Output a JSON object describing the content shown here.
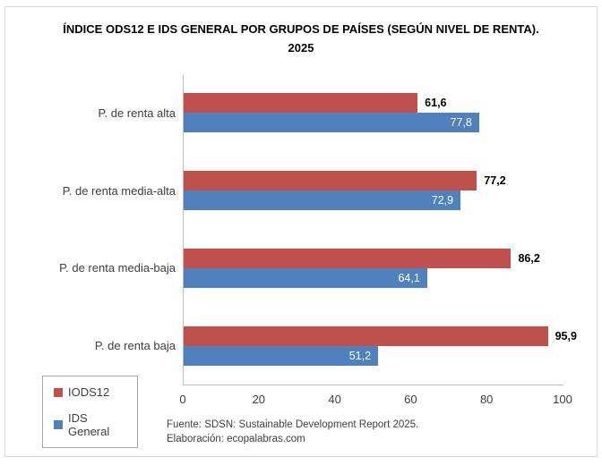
{
  "title_lines": [
    "ÍNDICE ODS12 E IDS GENERAL POR GRUPOS DE PAÍSES (SEGÚN NIVEL DE RENTA).",
    "2025"
  ],
  "chart_data": {
    "type": "bar",
    "orientation": "horizontal",
    "title": "ÍNDICE ODS12 E IDS GENERAL POR GRUPOS DE PAÍSES (SEGÚN NIVEL DE RENTA). 2025",
    "categories": [
      "P. de renta alta",
      "P. de renta media-alta",
      "P. de renta media-baja",
      "P. de renta baja"
    ],
    "series": [
      {
        "name": "IODS12",
        "color": "#C0504D",
        "values": [
          61.6,
          77.2,
          86.2,
          95.9
        ],
        "labels": [
          "61,6",
          "77,2",
          "86,2",
          "95,9"
        ],
        "label_position": "outside",
        "label_color": "#000000"
      },
      {
        "name": "IDS General",
        "color": "#4F81BD",
        "values": [
          77.8,
          72.9,
          64.1,
          51.2
        ],
        "labels": [
          "77,8",
          "72,9",
          "64,1",
          "51,2"
        ],
        "label_position": "inside",
        "label_color": "#FFFFFF"
      }
    ],
    "x_axis": {
      "min": 0,
      "max": 100,
      "ticks": [
        0,
        20,
        40,
        60,
        80,
        100
      ],
      "tick_labels": [
        "0",
        "20",
        "40",
        "60",
        "80",
        "100"
      ]
    },
    "legend": {
      "position": "bottom-left",
      "entries": [
        "IODS12",
        "IDS General"
      ]
    },
    "grid": false
  },
  "footer": {
    "source": "Fuente: SDSN: Sustainable Development Report 2025.",
    "elaboration": "Elaboración: ecopalabras.com"
  },
  "colors": {
    "iods12": "#C0504D",
    "ids_general": "#4F81BD",
    "axis_line": "#BFBFBF",
    "chart_border": "#D9D9D9"
  }
}
